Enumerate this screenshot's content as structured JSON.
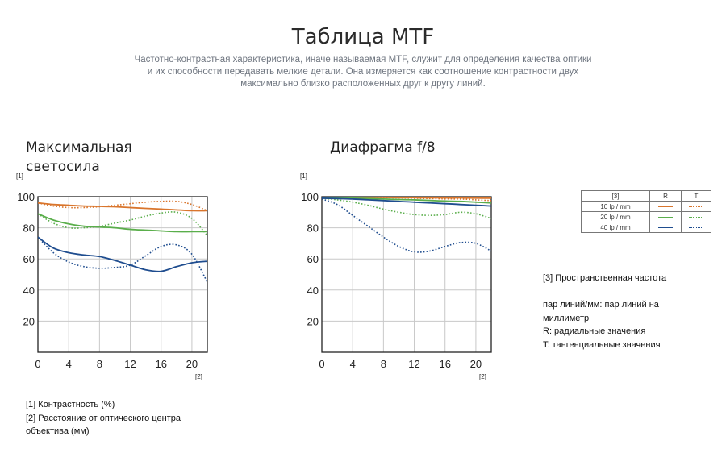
{
  "header": {
    "title": "Таблица MTF",
    "description": "Частотно-контрастная характеристика, иначе называемая MTF, служит для определения качества оптики\nи их способности передавать мелкие детали. Она измеряется как соотношение контрастности двух\nмаксимально близко расположенных друг к другу линий."
  },
  "colors": {
    "10": "#d9752c",
    "20": "#5aae4b",
    "40": "#1f4d8f",
    "grid": "#c8c8c8",
    "axis": "#222222"
  },
  "chart_data": [
    {
      "type": "line",
      "title": "Максимальная светосила",
      "y_axis_marker": "[1]",
      "x_axis_marker": "[2]",
      "xlim": [
        0,
        22
      ],
      "ylim": [
        0,
        100
      ],
      "x_ticks": [
        0,
        4,
        8,
        12,
        16,
        20
      ],
      "y_ticks": [
        20,
        40,
        60,
        80,
        100
      ],
      "grid": true,
      "series": [
        {
          "name": "10 lp / mm",
          "type": "R",
          "x": [
            0,
            2,
            4,
            6,
            8,
            10,
            12,
            14,
            16,
            18,
            20,
            22
          ],
          "values": [
            96,
            95,
            94.5,
            94,
            93.8,
            93.5,
            93,
            92.5,
            92,
            91.5,
            91,
            91
          ]
        },
        {
          "name": "10 lp / mm",
          "type": "T",
          "x": [
            0,
            2,
            4,
            6,
            8,
            10,
            12,
            14,
            16,
            18,
            20,
            22
          ],
          "values": [
            96,
            94,
            93,
            93,
            93.5,
            94.5,
            95.5,
            96.5,
            97,
            97,
            95,
            91
          ]
        },
        {
          "name": "20 lp / mm",
          "type": "R",
          "x": [
            0,
            2,
            4,
            6,
            8,
            10,
            12,
            14,
            16,
            18,
            20,
            22
          ],
          "values": [
            89,
            85,
            82.5,
            81,
            80.5,
            80,
            79,
            78.5,
            78,
            77.5,
            77.5,
            77.5
          ]
        },
        {
          "name": "20 lp / mm",
          "type": "T",
          "x": [
            0,
            2,
            4,
            6,
            8,
            10,
            12,
            14,
            16,
            18,
            20,
            22
          ],
          "values": [
            89,
            83,
            80,
            80,
            81,
            83,
            85,
            87.5,
            89.5,
            90,
            86,
            75
          ]
        },
        {
          "name": "40 lp / mm",
          "type": "R",
          "x": [
            0,
            2,
            4,
            6,
            8,
            10,
            12,
            14,
            16,
            18,
            20,
            22
          ],
          "values": [
            74,
            67,
            64,
            62.5,
            61.5,
            59,
            56,
            53,
            52,
            55,
            57.5,
            58.5
          ]
        },
        {
          "name": "40 lp / mm",
          "type": "T",
          "x": [
            0,
            2,
            4,
            6,
            8,
            10,
            12,
            14,
            16,
            18,
            20,
            22
          ],
          "values": [
            74,
            64,
            58,
            55,
            54,
            54.5,
            56,
            62,
            68,
            69,
            63,
            45
          ]
        }
      ]
    },
    {
      "type": "line",
      "title": "Диафрагма f/8",
      "y_axis_marker": "[1]",
      "x_axis_marker": "[2]",
      "xlim": [
        0,
        22
      ],
      "ylim": [
        0,
        100
      ],
      "x_ticks": [
        0,
        4,
        8,
        12,
        16,
        20
      ],
      "y_ticks": [
        20,
        40,
        60,
        80,
        100
      ],
      "grid": true,
      "series": [
        {
          "name": "10 lp / mm",
          "type": "R",
          "x": [
            0,
            2,
            4,
            6,
            8,
            10,
            12,
            14,
            16,
            18,
            20,
            22
          ],
          "values": [
            99.5,
            99.5,
            99.5,
            99.5,
            99.5,
            99.4,
            99.4,
            99.3,
            99.2,
            99.2,
            99.1,
            99
          ]
        },
        {
          "name": "10 lp / mm",
          "type": "T",
          "x": [
            0,
            2,
            4,
            6,
            8,
            10,
            12,
            14,
            16,
            18,
            20,
            22
          ],
          "values": [
            99.5,
            99.5,
            99.4,
            99.4,
            99.3,
            99.2,
            99,
            98.8,
            98.6,
            98.5,
            98,
            97.5
          ]
        },
        {
          "name": "20 lp / mm",
          "type": "R",
          "x": [
            0,
            2,
            4,
            6,
            8,
            10,
            12,
            14,
            16,
            18,
            20,
            22
          ],
          "values": [
            99,
            99,
            99,
            98.8,
            98.5,
            98.2,
            98,
            97.6,
            97.2,
            97,
            96.5,
            96
          ]
        },
        {
          "name": "20 lp / mm",
          "type": "T",
          "x": [
            0,
            2,
            4,
            6,
            8,
            10,
            12,
            14,
            16,
            18,
            20,
            22
          ],
          "values": [
            99,
            98,
            96.5,
            94.5,
            92,
            90,
            88.5,
            88,
            88.5,
            90,
            89,
            86
          ]
        },
        {
          "name": "40 lp / mm",
          "type": "R",
          "x": [
            0,
            2,
            4,
            6,
            8,
            10,
            12,
            14,
            16,
            18,
            20,
            22
          ],
          "values": [
            99,
            98.8,
            98.5,
            98,
            97.5,
            97,
            96.5,
            96,
            95.5,
            95,
            94.5,
            94
          ]
        },
        {
          "name": "40 lp / mm",
          "type": "T",
          "x": [
            0,
            2,
            4,
            6,
            8,
            10,
            12,
            14,
            16,
            18,
            20,
            22
          ],
          "values": [
            98.5,
            95,
            88,
            81,
            74,
            68,
            64.5,
            65,
            68,
            70.5,
            70,
            65
          ]
        }
      ]
    }
  ],
  "legend": {
    "header": [
      "[3]",
      "R",
      "T"
    ],
    "rows": [
      {
        "key": "10",
        "label": "10 lp / mm"
      },
      {
        "key": "20",
        "label": "20 lp / mm"
      },
      {
        "key": "40",
        "label": "40 lp / mm"
      }
    ]
  },
  "notes": {
    "left": "[1] Контрастность (%)\n[2] Расстояние от оптического центра\nобъектива (мм)",
    "right": "[3] Пространственная частота\n\nпар линий/мм: пар линий на\nмиллиметр\nR: радиальные значения\nT: тангенциальные значения"
  }
}
